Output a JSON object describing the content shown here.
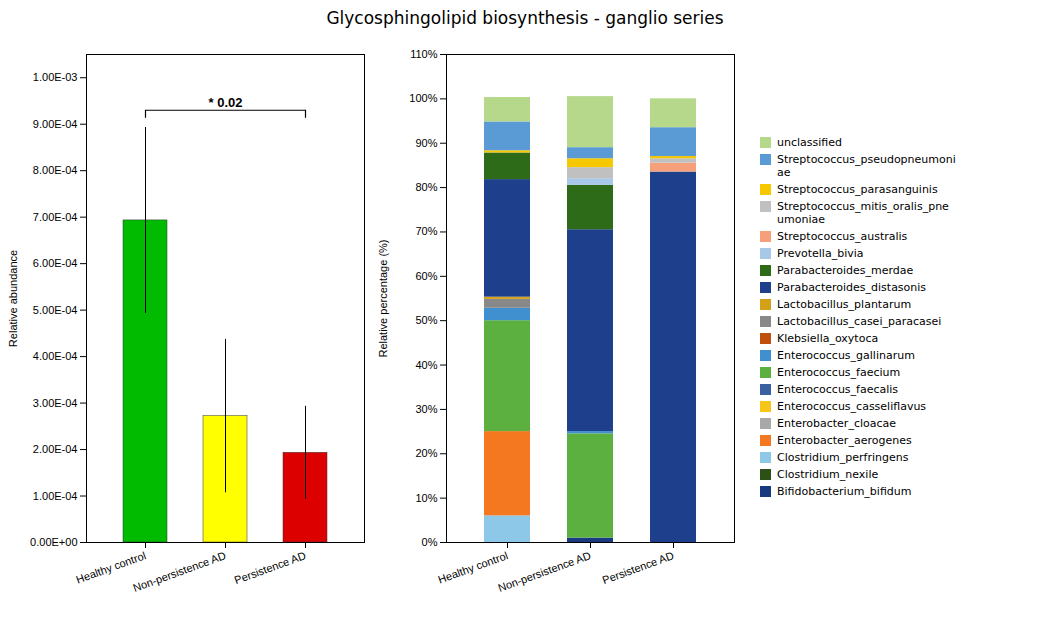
{
  "chart_data": [
    {
      "type": "bar",
      "title": "Glycosphingolipid biosynthesis - ganglio series",
      "categories": [
        "Healthy control",
        "Non-persistence AD",
        "Persistence AD"
      ],
      "values": [
        0.000693,
        0.000272,
        0.000193
      ],
      "errors": [
        0.0002,
        0.000165,
        0.0001
      ],
      "colors": [
        "#00bb00",
        "#ffff00",
        "#dd0000"
      ],
      "ylabel": "Relative abundance",
      "ylim": [
        0,
        0.00105
      ],
      "yticks": [
        {
          "value": 0,
          "label": "0.00E+00"
        },
        {
          "value": 0.0001,
          "label": "1.00E-04"
        },
        {
          "value": 0.0002,
          "label": "2.00E-04"
        },
        {
          "value": 0.0003,
          "label": "3.00E-04"
        },
        {
          "value": 0.0004,
          "label": "4.00E-04"
        },
        {
          "value": 0.0005,
          "label": "5.00E-04"
        },
        {
          "value": 0.0006,
          "label": "6.00E-04"
        },
        {
          "value": 0.0007,
          "label": "7.00E-04"
        },
        {
          "value": 0.0008,
          "label": "8.00E-04"
        },
        {
          "value": 0.0009,
          "label": "9.00E-04"
        },
        {
          "value": 0.001,
          "label": "1.00E-03"
        }
      ],
      "annotations": [
        {
          "text": "* 0.02",
          "x1": "Healthy control",
          "x2": "Persistence AD",
          "y": 0.00093
        }
      ],
      "grid": false
    },
    {
      "type": "bar",
      "stacked": true,
      "categories": [
        "Healthy control",
        "Non-persistence AD",
        "Persistence AD"
      ],
      "ylabel": "Relative percentage (%)",
      "ylim": [
        0,
        1.1
      ],
      "yticks": [
        {
          "value": 0,
          "label": "0%"
        },
        {
          "value": 0.1,
          "label": "10%"
        },
        {
          "value": 0.2,
          "label": "20%"
        },
        {
          "value": 0.3,
          "label": "30%"
        },
        {
          "value": 0.4,
          "label": "40%"
        },
        {
          "value": 0.5,
          "label": "50%"
        },
        {
          "value": 0.6,
          "label": "60%"
        },
        {
          "value": 0.7,
          "label": "70%"
        },
        {
          "value": 0.8,
          "label": "80%"
        },
        {
          "value": 0.9,
          "label": "90%"
        },
        {
          "value": 1.0,
          "label": "100%"
        },
        {
          "value": 1.1,
          "label": "110%"
        }
      ],
      "legend": "right",
      "grid": false,
      "series": [
        {
          "name": "Bifidobacterium_bifidum",
          "color": "#1a3a80",
          "values": [
            0.0,
            0.01,
            0.0
          ]
        },
        {
          "name": "Clostridium_nexile",
          "color": "#2d5016",
          "values": [
            0.0,
            0.0,
            0.0
          ]
        },
        {
          "name": "Clostridium_perfringens",
          "color": "#8ec8e8",
          "values": [
            0.06,
            0.0,
            0.0
          ]
        },
        {
          "name": "Enterobacter_aerogenes",
          "color": "#f47820",
          "values": [
            0.19,
            0.0,
            0.0
          ]
        },
        {
          "name": "Enterobacter_cloacae",
          "color": "#a8a8a8",
          "values": [
            0.0,
            0.0,
            0.0
          ]
        },
        {
          "name": "Enterococcus_casseliflavus",
          "color": "#f5c518",
          "values": [
            0.0,
            0.0,
            0.0
          ]
        },
        {
          "name": "Enterococcus_faecalis",
          "color": "#3a60a0",
          "values": [
            0.0,
            0.0,
            0.0
          ]
        },
        {
          "name": "Enterococcus_faecium",
          "color": "#5cb040",
          "values": [
            0.25,
            0.235,
            0.0
          ]
        },
        {
          "name": "Enterococcus_gallinarum",
          "color": "#4090d0",
          "values": [
            0.028,
            0.005,
            0.0
          ]
        },
        {
          "name": "Klebsiella_oxytoca",
          "color": "#c05010",
          "values": [
            0.0,
            0.0,
            0.0
          ]
        },
        {
          "name": "Lactobacillus_casei_paracasei",
          "color": "#888888",
          "values": [
            0.02,
            0.0,
            0.0
          ]
        },
        {
          "name": "Lactobacillus_plantarum",
          "color": "#d4a017",
          "values": [
            0.005,
            0.0,
            0.0
          ]
        },
        {
          "name": "Parabacteroides_distasonis",
          "color": "#1e3f8c",
          "values": [
            0.265,
            0.455,
            0.835
          ]
        },
        {
          "name": "Parabacteroides_merdae",
          "color": "#2e6b18",
          "values": [
            0.06,
            0.1,
            0.0
          ]
        },
        {
          "name": "Prevotella_bivia",
          "color": "#a8c8e8",
          "values": [
            0.0,
            0.015,
            0.0
          ]
        },
        {
          "name": "Streptococcus_australis",
          "color": "#f5a07a",
          "values": [
            0.0,
            0.0,
            0.02
          ]
        },
        {
          "name": "Streptococcus_mitis_oralis_pne\numoniae",
          "color": "#c0c0c0",
          "values": [
            0.0,
            0.025,
            0.01
          ]
        },
        {
          "name": "Streptococcus_parasanguinis",
          "color": "#f5c800",
          "values": [
            0.005,
            0.02,
            0.005
          ]
        },
        {
          "name": "Streptococcus_pseudopneumoni\nae",
          "color": "#5b9bd5",
          "values": [
            0.065,
            0.025,
            0.065
          ]
        },
        {
          "name": "unclassified",
          "color": "#b5d88a",
          "values": [
            0.055,
            0.115,
            0.065
          ]
        }
      ]
    }
  ]
}
